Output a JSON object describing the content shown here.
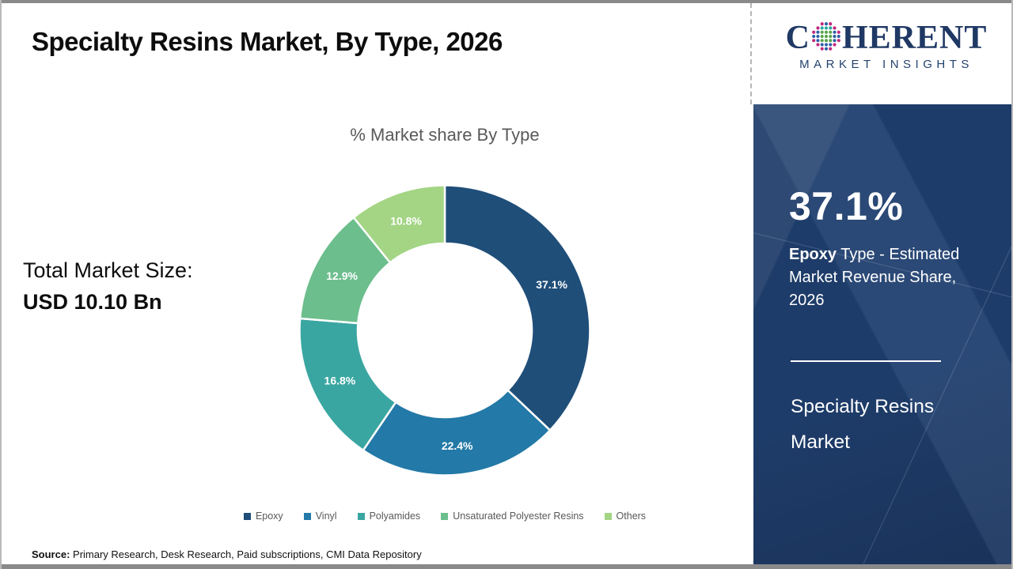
{
  "slide": {
    "title": "Specialty Resins Market, By Type, 2026",
    "source_label": "Source:",
    "source_text": " Primary Research, Desk Research, Paid subscriptions, CMI Data Repository"
  },
  "logo": {
    "word_start": "C",
    "word_end": "HERENT",
    "subtitle": "MARKET INSIGHTS",
    "brand_color": "#1F3864"
  },
  "left_panel": {
    "total_label": "Total Market Size:",
    "total_value": "USD 10.10 Bn"
  },
  "chart_data": {
    "type": "pie",
    "donut": true,
    "title": "% Market share By Type",
    "categories": [
      "Epoxy",
      "Vinyl",
      "Polyamides",
      "Unsaturated Polyester Resins",
      "Others"
    ],
    "values": [
      37.1,
      22.4,
      16.8,
      12.9,
      10.8
    ],
    "labels": [
      "37.1%",
      "22.4%",
      "16.8%",
      "12.9%",
      "10.8%"
    ],
    "colors": [
      "#1F4E79",
      "#2379A7",
      "#3AA6A1",
      "#6CBE8D",
      "#A3D584"
    ],
    "start_angle_deg": 0,
    "direction": "clockwise",
    "label_color": "#FFFFFF",
    "legend_position": "bottom",
    "legend_text_color": "#595959"
  },
  "sidebar": {
    "highlight_value": "37.1%",
    "highlight_bold": "Epoxy",
    "highlight_rest": " Type - Estimated Market Revenue Share, 2026",
    "panel_title": "Specialty Resins Market",
    "background_color": "#1E3C69"
  }
}
